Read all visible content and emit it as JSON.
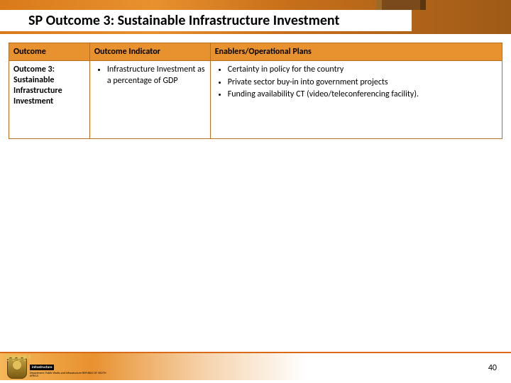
{
  "title": "SP Outcome 3: Sustainable Infrastructure Investment",
  "page_number": "40",
  "colors": {
    "banner_orange": "#e8912f",
    "banner_dark": "#9e5a18",
    "header_bg": "#e8912f",
    "cell_border": "#b86f1e",
    "footer_rule": "#d96a1a"
  },
  "table": {
    "headers": {
      "outcome": "Outcome",
      "indicator": "Outcome Indicator",
      "enablers": "Enablers/Operational Plans"
    },
    "row": {
      "outcome_text": "Outcome 3: Sustainable Infrastructure Investment",
      "indicator_bullets": [
        "Infrastructure Investment as a percentage of GDP"
      ],
      "enabler_bullets": [
        "Certainty in policy for the country",
        "Private sector buy-in into government projects",
        "Funding availability CT (video/teleconferencing facility)."
      ]
    }
  },
  "logo": {
    "line1": "infrastructure",
    "line2": "Department: Public Works and Infrastructure REPUBLIC OF SOUTH AFRICA"
  }
}
